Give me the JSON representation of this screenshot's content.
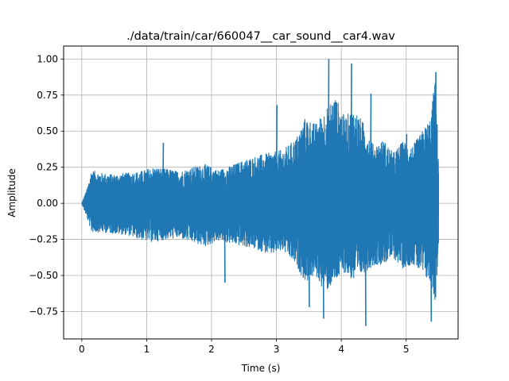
{
  "chart_data": {
    "type": "line",
    "title": "./data/train/car/660047__car_sound__car4.wav",
    "xlabel": "Time (s)",
    "ylabel": "Amplitude",
    "xlim": [
      -0.28,
      5.8
    ],
    "ylim": [
      -0.94,
      1.09
    ],
    "xticks": [
      0,
      1,
      2,
      3,
      4,
      5
    ],
    "xtick_labels": [
      "0",
      "1",
      "2",
      "3",
      "4",
      "5"
    ],
    "yticks": [
      -0.75,
      -0.5,
      -0.25,
      0.0,
      0.25,
      0.5,
      0.75,
      1.0
    ],
    "ytick_labels": [
      "−0.75",
      "−0.50",
      "−0.25",
      "0.00",
      "0.25",
      "0.50",
      "0.75",
      "1.00"
    ],
    "grid": true,
    "line_color": "#1f77b4",
    "series": [
      {
        "name": "",
        "envelope": {
          "t": [
            0.0,
            0.08,
            0.15,
            0.3,
            0.5,
            0.7,
            0.9,
            1.1,
            1.3,
            1.5,
            1.7,
            1.9,
            2.1,
            2.3,
            2.5,
            2.7,
            2.9,
            3.1,
            3.3,
            3.45,
            3.6,
            3.75,
            3.9,
            4.05,
            4.2,
            4.35,
            4.5,
            4.65,
            4.8,
            4.95,
            5.1,
            5.25,
            5.38,
            5.45,
            5.5
          ],
          "max": [
            0.0,
            0.1,
            0.23,
            0.21,
            0.2,
            0.21,
            0.22,
            0.25,
            0.24,
            0.22,
            0.25,
            0.27,
            0.23,
            0.26,
            0.3,
            0.33,
            0.35,
            0.37,
            0.45,
            0.6,
            0.55,
            0.65,
            0.75,
            0.6,
            0.66,
            0.55,
            0.4,
            0.44,
            0.35,
            0.43,
            0.4,
            0.5,
            0.6,
            0.9,
            0.3
          ],
          "min": [
            0.0,
            -0.1,
            -0.2,
            -0.2,
            -0.21,
            -0.22,
            -0.25,
            -0.27,
            -0.25,
            -0.24,
            -0.27,
            -0.3,
            -0.26,
            -0.28,
            -0.3,
            -0.32,
            -0.36,
            -0.33,
            -0.43,
            -0.55,
            -0.5,
            -0.62,
            -0.55,
            -0.48,
            -0.55,
            -0.48,
            -0.43,
            -0.42,
            -0.38,
            -0.45,
            -0.42,
            -0.5,
            -0.56,
            -0.7,
            -0.3
          ]
        },
        "peaks": [
          {
            "t": 1.25,
            "y": 0.42
          },
          {
            "t": 2.2,
            "y": -0.55
          },
          {
            "t": 3.0,
            "y": 0.68
          },
          {
            "t": 3.5,
            "y": -0.72
          },
          {
            "t": 3.72,
            "y": -0.8
          },
          {
            "t": 3.8,
            "y": 1.0
          },
          {
            "t": 4.15,
            "y": 0.97
          },
          {
            "t": 4.37,
            "y": -0.85
          },
          {
            "t": 4.45,
            "y": 0.76
          },
          {
            "t": 5.0,
            "y": 0.48
          },
          {
            "t": 5.38,
            "y": -0.82
          },
          {
            "t": 5.45,
            "y": 0.91
          }
        ]
      }
    ]
  }
}
